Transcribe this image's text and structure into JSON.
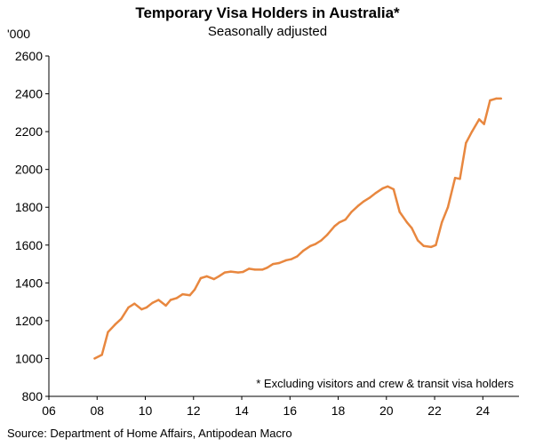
{
  "chart_data": {
    "type": "line",
    "title": "Temporary Visa Holders in Australia*",
    "subtitle": "Seasonally adjusted",
    "yunit": "'000",
    "note": "* Excluding visitors and crew & transit visa holders",
    "source": "Source: Department of Home Affairs, Antipodean Macro",
    "xlim": [
      2006,
      2025.5
    ],
    "ylim": [
      800,
      2600
    ],
    "x_ticks": [
      "06",
      "08",
      "10",
      "12",
      "14",
      "16",
      "18",
      "20",
      "22",
      "24"
    ],
    "y_ticks": [
      "800",
      "1000",
      "1200",
      "1400",
      "1600",
      "1800",
      "2000",
      "2200",
      "2400",
      "2600"
    ],
    "grid": false,
    "colors": {
      "line": "#e8873f",
      "axis": "#000000"
    },
    "series": [
      {
        "x": [
          2007.9,
          2008.2,
          2008.45,
          2008.75,
          2009.0,
          2009.3,
          2009.55,
          2009.85,
          2010.05,
          2010.3,
          2010.55,
          2010.85,
          2011.05,
          2011.3,
          2011.55,
          2011.85,
          2012.05,
          2012.3,
          2012.55,
          2012.85,
          2013.05,
          2013.3,
          2013.55,
          2013.85,
          2014.05,
          2014.3,
          2014.55,
          2014.85,
          2015.05,
          2015.3,
          2015.55,
          2015.85,
          2016.05,
          2016.3,
          2016.55,
          2016.85,
          2017.05,
          2017.3,
          2017.55,
          2017.85,
          2018.05,
          2018.3,
          2018.55,
          2018.85,
          2019.05,
          2019.3,
          2019.55,
          2019.85,
          2020.05,
          2020.3,
          2020.55,
          2020.85,
          2021.05,
          2021.3,
          2021.55,
          2021.85,
          2022.05,
          2022.3,
          2022.55,
          2022.85,
          2023.05,
          2023.3,
          2023.55,
          2023.85,
          2024.05,
          2024.3,
          2024.55,
          2024.75
        ],
        "values": [
          1000,
          1020,
          1140,
          1180,
          1210,
          1270,
          1290,
          1260,
          1270,
          1295,
          1310,
          1280,
          1310,
          1320,
          1340,
          1335,
          1365,
          1425,
          1435,
          1420,
          1435,
          1455,
          1460,
          1455,
          1458,
          1475,
          1470,
          1470,
          1480,
          1500,
          1505,
          1520,
          1525,
          1540,
          1570,
          1595,
          1605,
          1625,
          1655,
          1700,
          1720,
          1735,
          1775,
          1810,
          1830,
          1850,
          1875,
          1900,
          1910,
          1895,
          1775,
          1720,
          1690,
          1625,
          1595,
          1590,
          1600,
          1720,
          1800,
          1955,
          1950,
          2140,
          2200,
          2265,
          2240,
          2365,
          2375,
          2375
        ]
      }
    ]
  }
}
